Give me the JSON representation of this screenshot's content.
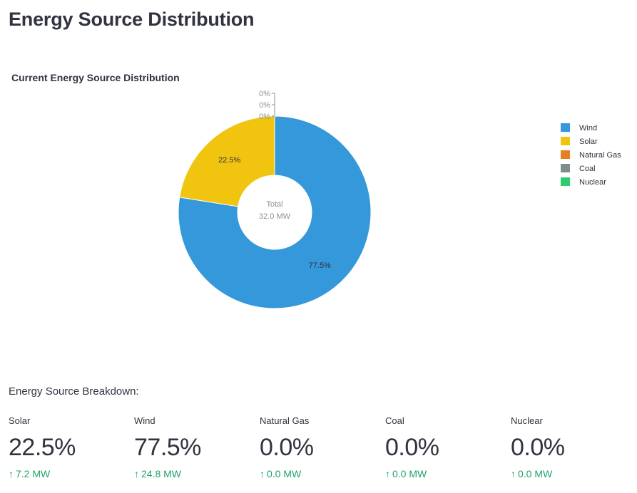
{
  "page": {
    "title": "Energy Source Distribution",
    "breakdown_heading": "Energy Source Breakdown:"
  },
  "chart_data": {
    "type": "pie",
    "title": "Current Energy Source Distribution",
    "hole": true,
    "center_text": [
      "Total",
      "32.0 MW"
    ],
    "legend_position": "top-right",
    "slices": [
      {
        "name": "Wind",
        "value": 24.8,
        "label": "77.5%",
        "color": "#3498db"
      },
      {
        "name": "Solar",
        "value": 7.2,
        "label": "22.5%",
        "color": "#f1c40f"
      },
      {
        "name": "Natural Gas",
        "value": 0,
        "label": "0%",
        "color": "#e67e22"
      },
      {
        "name": "Coal",
        "value": 0,
        "label": "0%",
        "color": "#7f8c8d"
      },
      {
        "name": "Nuclear",
        "value": 0,
        "label": "0%",
        "color": "#2ecc71"
      }
    ]
  },
  "metrics": [
    {
      "label": "Solar",
      "value": "22.5%",
      "delta": "7.2 MW"
    },
    {
      "label": "Wind",
      "value": "77.5%",
      "delta": "24.8 MW"
    },
    {
      "label": "Natural Gas",
      "value": "0.0%",
      "delta": "0.0 MW"
    },
    {
      "label": "Coal",
      "value": "0.0%",
      "delta": "0.0 MW"
    },
    {
      "label": "Nuclear",
      "value": "0.0%",
      "delta": "0.0 MW"
    }
  ],
  "icons": {
    "delta_up": "↑"
  },
  "colors": {
    "delta_positive": "#21a366",
    "text": "#31333f"
  }
}
